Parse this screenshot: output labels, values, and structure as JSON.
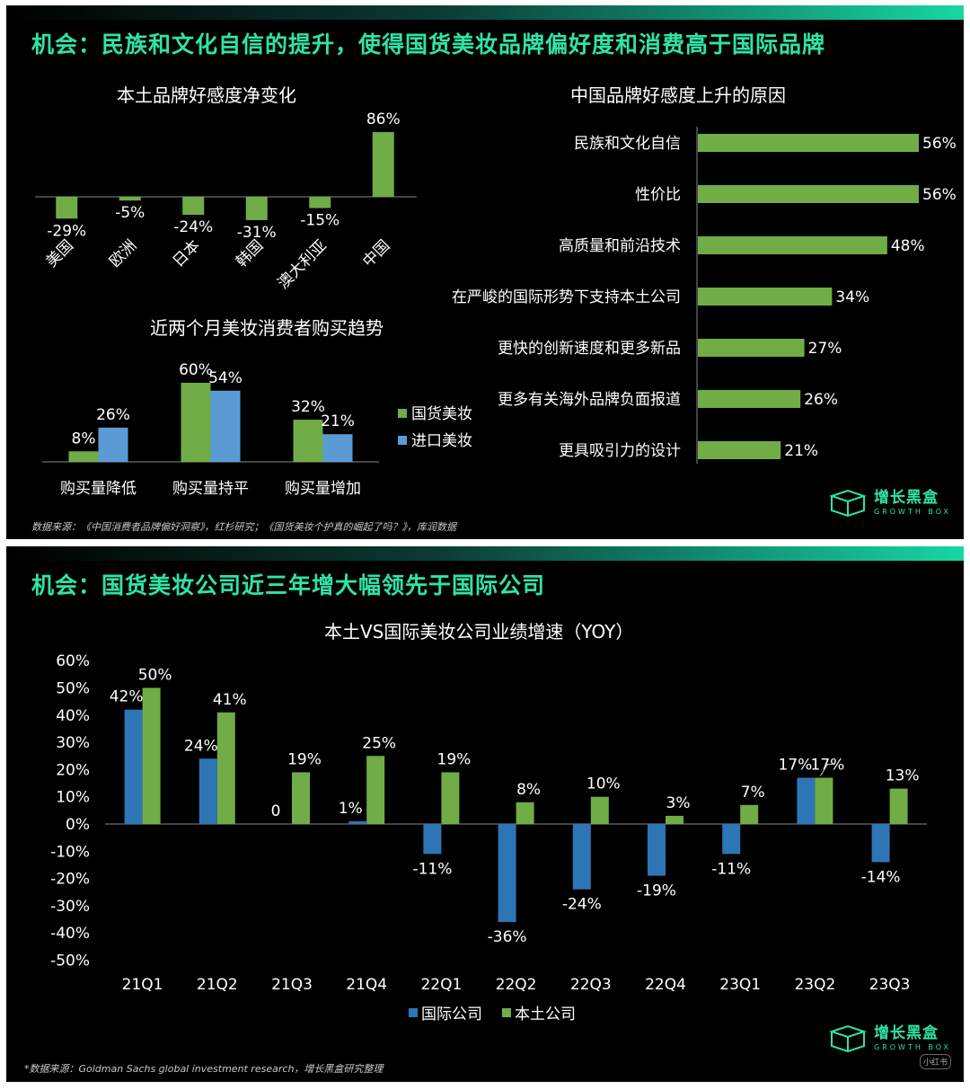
{
  "colors": {
    "green": "#70ad47",
    "blue": "#5b9bd5",
    "blue_dark": "#2e75b6",
    "heading": "#2fe3a9"
  },
  "panel1": {
    "heading": "机会：民族和文化自信的提升，使得国货美妆品牌偏好度和消费高于国际品牌",
    "source": "数据来源：《中国消费者品牌偏好洞察》，红杉研究；《国货美妆个护真的崛起了吗？》，库润数据",
    "logo": {
      "cn": "增长黑盒",
      "en": "GROWTH BOX",
      "icon": "box-icon"
    }
  },
  "panel2": {
    "heading": "机会：国货美妆公司近三年增大幅领先于国际公司",
    "source": "*数据来源：Goldman Sachs global investment research，增长黑盒研究整理",
    "logo": {
      "cn": "增长黑盒",
      "en": "GROWTH BOX",
      "icon": "box-icon"
    },
    "watermark": "小红书"
  },
  "chart_data": [
    {
      "type": "bar",
      "title": "本土品牌好感度净变化",
      "categories": [
        "美国",
        "欧洲",
        "日本",
        "韩国",
        "澳大利亚",
        "中国"
      ],
      "values": [
        -29,
        -5,
        -24,
        -31,
        -15,
        86
      ],
      "labels": [
        "-29%",
        "-5%",
        "-24%",
        "-31%",
        "-15%",
        "86%"
      ],
      "unit": "%"
    },
    {
      "type": "bar",
      "title": "近两个月美妆消费者购买趋势",
      "categories": [
        "购买量降低",
        "购买量持平",
        "购买量增加"
      ],
      "series": [
        {
          "name": "国货美妆",
          "values": [
            8,
            60,
            32
          ],
          "labels": [
            "8%",
            "60%",
            "32%"
          ]
        },
        {
          "name": "进口美妆",
          "values": [
            26,
            54,
            21
          ],
          "labels": [
            "26%",
            "54%",
            "21%"
          ]
        }
      ],
      "legend": "right"
    },
    {
      "type": "bar",
      "orientation": "horizontal",
      "title": "中国品牌好感度上升的原因",
      "categories": [
        "民族和文化自信",
        "性价比",
        "高质量和前沿技术",
        "在严峻的国际形势下支持本土公司",
        "更快的创新速度和更多新品",
        "更多有关海外品牌负面报道",
        "更具吸引力的设计"
      ],
      "values": [
        56,
        56,
        48,
        34,
        27,
        26,
        21
      ],
      "labels": [
        "56%",
        "56%",
        "48%",
        "34%",
        "27%",
        "26%",
        "21%"
      ]
    },
    {
      "type": "bar",
      "title": "本土VS国际美妆公司业绩增速（YOY）",
      "categories": [
        "21Q1",
        "21Q2",
        "21Q3",
        "21Q4",
        "22Q1",
        "22Q2",
        "22Q3",
        "22Q4",
        "23Q1",
        "23Q2",
        "23Q3"
      ],
      "series": [
        {
          "name": "国际公司",
          "values": [
            42,
            24,
            0,
            1,
            -11,
            -36,
            -24,
            -19,
            -11,
            17,
            -14
          ],
          "labels": [
            "42%",
            "24%",
            "0",
            "1%",
            "-11%",
            "-36%",
            "-24%",
            "-19%",
            "-11%",
            "17%",
            "-14%"
          ]
        },
        {
          "name": "本土公司",
          "values": [
            50,
            41,
            19,
            25,
            19,
            8,
            10,
            3,
            7,
            17,
            13
          ],
          "labels": [
            "50%",
            "41%",
            "19%",
            "25%",
            "19%",
            "8%",
            "10%",
            "3%",
            "7%",
            "17%",
            "13%"
          ]
        }
      ],
      "ylim": [
        -50,
        60
      ],
      "yticks": [
        "60%",
        "50%",
        "40%",
        "30%",
        "20%",
        "10%",
        "0%",
        "-10%",
        "-20%",
        "-30%",
        "-40%",
        "-50%"
      ],
      "legend": "bottom"
    }
  ]
}
